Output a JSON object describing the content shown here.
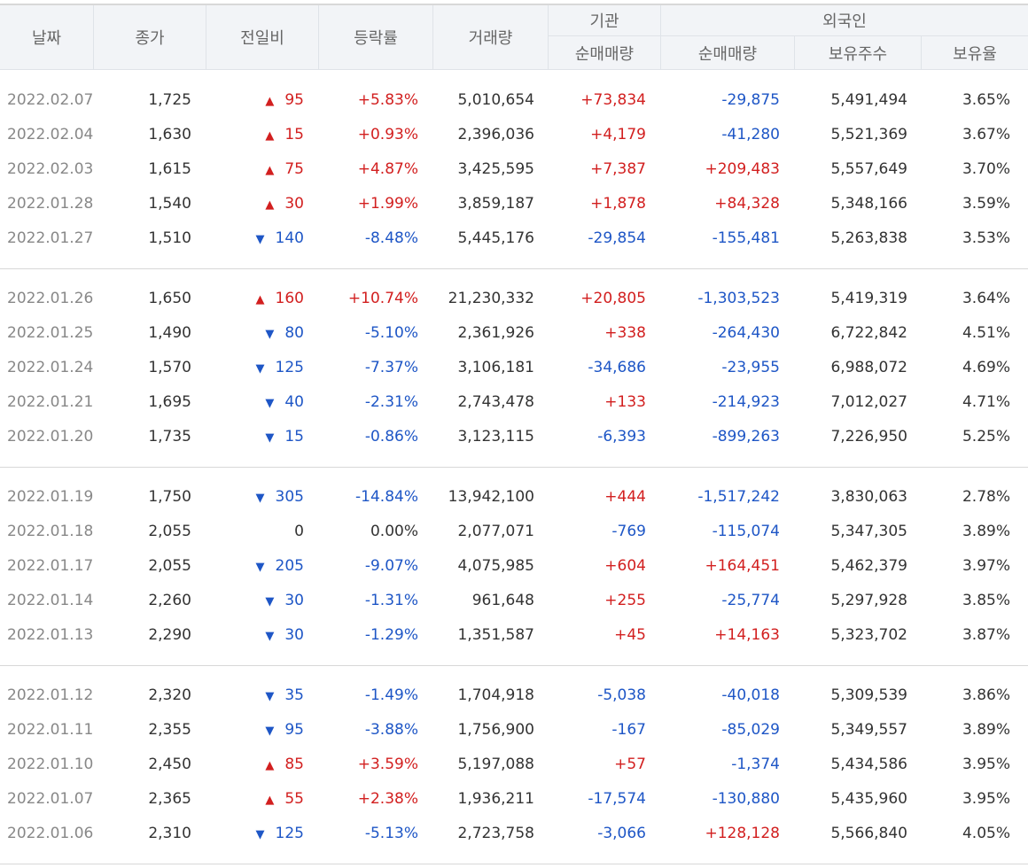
{
  "headers": {
    "date": "날짜",
    "close": "종가",
    "change": "전일비",
    "rate": "등락률",
    "volume": "거래량",
    "institution": "기관",
    "institution_net": "순매매량",
    "foreign": "외국인",
    "foreign_net": "순매매량",
    "foreign_holdings": "보유주수",
    "foreign_ratio": "보유율"
  },
  "colors": {
    "up": "#d21f1f",
    "down": "#1e56c6",
    "header_bg": "#f2f4f7"
  },
  "icons": {
    "up": "triangle-up-icon",
    "down": "triangle-down-icon"
  },
  "rows": [
    {
      "date": "2022.02.07",
      "close": "1,725",
      "dir": "up",
      "change": "95",
      "rate": "+5.83%",
      "volume": "5,010,654",
      "inst": "+73,834",
      "frgn": "-29,875",
      "hold": "5,491,494",
      "ratio": "3.65%"
    },
    {
      "date": "2022.02.04",
      "close": "1,630",
      "dir": "up",
      "change": "15",
      "rate": "+0.93%",
      "volume": "2,396,036",
      "inst": "+4,179",
      "frgn": "-41,280",
      "hold": "5,521,369",
      "ratio": "3.67%"
    },
    {
      "date": "2022.02.03",
      "close": "1,615",
      "dir": "up",
      "change": "75",
      "rate": "+4.87%",
      "volume": "3,425,595",
      "inst": "+7,387",
      "frgn": "+209,483",
      "hold": "5,557,649",
      "ratio": "3.70%"
    },
    {
      "date": "2022.01.28",
      "close": "1,540",
      "dir": "up",
      "change": "30",
      "rate": "+1.99%",
      "volume": "3,859,187",
      "inst": "+1,878",
      "frgn": "+84,328",
      "hold": "5,348,166",
      "ratio": "3.59%"
    },
    {
      "date": "2022.01.27",
      "close": "1,510",
      "dir": "down",
      "change": "140",
      "rate": "-8.48%",
      "volume": "5,445,176",
      "inst": "-29,854",
      "frgn": "-155,481",
      "hold": "5,263,838",
      "ratio": "3.53%"
    },
    {
      "date": "2022.01.26",
      "close": "1,650",
      "dir": "up",
      "change": "160",
      "rate": "+10.74%",
      "volume": "21,230,332",
      "inst": "+20,805",
      "frgn": "-1,303,523",
      "hold": "5,419,319",
      "ratio": "3.64%"
    },
    {
      "date": "2022.01.25",
      "close": "1,490",
      "dir": "down",
      "change": "80",
      "rate": "-5.10%",
      "volume": "2,361,926",
      "inst": "+338",
      "frgn": "-264,430",
      "hold": "6,722,842",
      "ratio": "4.51%"
    },
    {
      "date": "2022.01.24",
      "close": "1,570",
      "dir": "down",
      "change": "125",
      "rate": "-7.37%",
      "volume": "3,106,181",
      "inst": "-34,686",
      "frgn": "-23,955",
      "hold": "6,988,072",
      "ratio": "4.69%"
    },
    {
      "date": "2022.01.21",
      "close": "1,695",
      "dir": "down",
      "change": "40",
      "rate": "-2.31%",
      "volume": "2,743,478",
      "inst": "+133",
      "frgn": "-214,923",
      "hold": "7,012,027",
      "ratio": "4.71%"
    },
    {
      "date": "2022.01.20",
      "close": "1,735",
      "dir": "down",
      "change": "15",
      "rate": "-0.86%",
      "volume": "3,123,115",
      "inst": "-6,393",
      "frgn": "-899,263",
      "hold": "7,226,950",
      "ratio": "5.25%"
    },
    {
      "date": "2022.01.19",
      "close": "1,750",
      "dir": "down",
      "change": "305",
      "rate": "-14.84%",
      "volume": "13,942,100",
      "inst": "+444",
      "frgn": "-1,517,242",
      "hold": "3,830,063",
      "ratio": "2.78%"
    },
    {
      "date": "2022.01.18",
      "close": "2,055",
      "dir": "flat",
      "change": "0",
      "rate": "0.00%",
      "volume": "2,077,071",
      "inst": "-769",
      "frgn": "-115,074",
      "hold": "5,347,305",
      "ratio": "3.89%"
    },
    {
      "date": "2022.01.17",
      "close": "2,055",
      "dir": "down",
      "change": "205",
      "rate": "-9.07%",
      "volume": "4,075,985",
      "inst": "+604",
      "frgn": "+164,451",
      "hold": "5,462,379",
      "ratio": "3.97%"
    },
    {
      "date": "2022.01.14",
      "close": "2,260",
      "dir": "down",
      "change": "30",
      "rate": "-1.31%",
      "volume": "961,648",
      "inst": "+255",
      "frgn": "-25,774",
      "hold": "5,297,928",
      "ratio": "3.85%"
    },
    {
      "date": "2022.01.13",
      "close": "2,290",
      "dir": "down",
      "change": "30",
      "rate": "-1.29%",
      "volume": "1,351,587",
      "inst": "+45",
      "frgn": "+14,163",
      "hold": "5,323,702",
      "ratio": "3.87%"
    },
    {
      "date": "2022.01.12",
      "close": "2,320",
      "dir": "down",
      "change": "35",
      "rate": "-1.49%",
      "volume": "1,704,918",
      "inst": "-5,038",
      "frgn": "-40,018",
      "hold": "5,309,539",
      "ratio": "3.86%"
    },
    {
      "date": "2022.01.11",
      "close": "2,355",
      "dir": "down",
      "change": "95",
      "rate": "-3.88%",
      "volume": "1,756,900",
      "inst": "-167",
      "frgn": "-85,029",
      "hold": "5,349,557",
      "ratio": "3.89%"
    },
    {
      "date": "2022.01.10",
      "close": "2,450",
      "dir": "up",
      "change": "85",
      "rate": "+3.59%",
      "volume": "5,197,088",
      "inst": "+57",
      "frgn": "-1,374",
      "hold": "5,434,586",
      "ratio": "3.95%"
    },
    {
      "date": "2022.01.07",
      "close": "2,365",
      "dir": "up",
      "change": "55",
      "rate": "+2.38%",
      "volume": "1,936,211",
      "inst": "-17,574",
      "frgn": "-130,880",
      "hold": "5,435,960",
      "ratio": "3.95%"
    },
    {
      "date": "2022.01.06",
      "close": "2,310",
      "dir": "down",
      "change": "125",
      "rate": "-5.13%",
      "volume": "2,723,758",
      "inst": "-3,066",
      "frgn": "+128,128",
      "hold": "5,566,840",
      "ratio": "4.05%"
    }
  ]
}
